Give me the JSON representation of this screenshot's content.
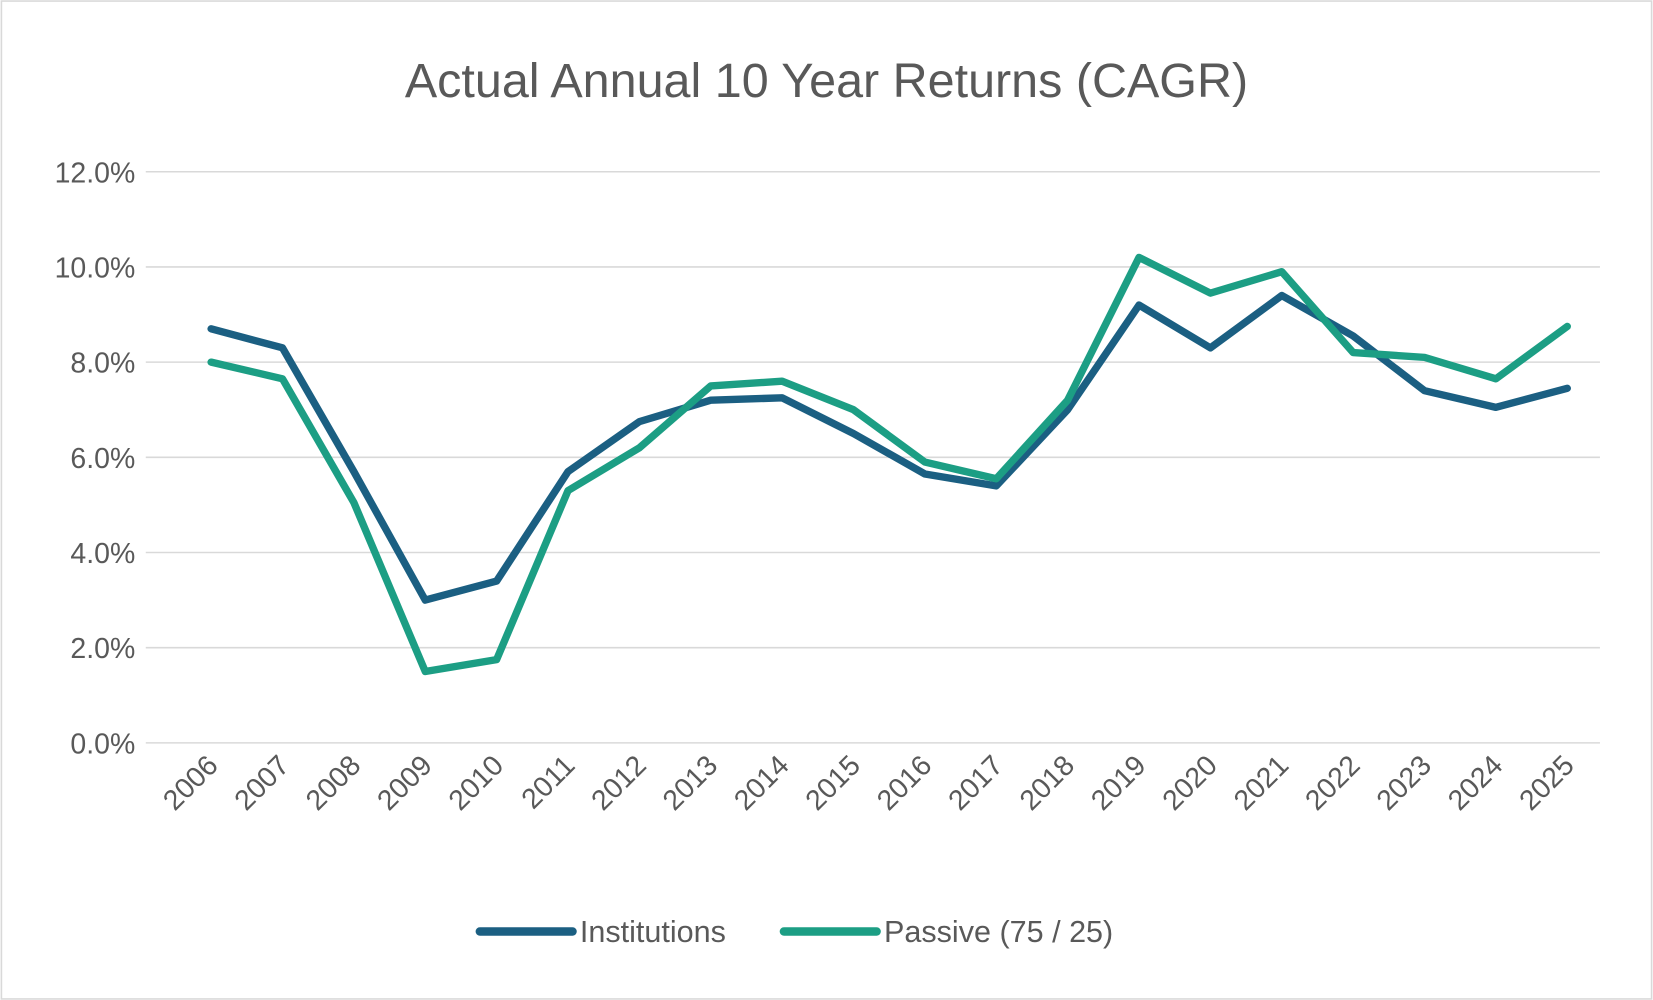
{
  "chart_data": {
    "type": "line",
    "title": "Actual Annual 10 Year Returns (CAGR)",
    "xlabel": "",
    "ylabel": "",
    "ylim": [
      0,
      12
    ],
    "y_ticks": [
      "0.0%",
      "2.0%",
      "4.0%",
      "6.0%",
      "8.0%",
      "10.0%",
      "12.0%"
    ],
    "grid": true,
    "legend_position": "bottom",
    "categories": [
      "2006",
      "2007",
      "2008",
      "2009",
      "2010",
      "2011",
      "2012",
      "2013",
      "2014",
      "2015",
      "2016",
      "2017",
      "2018",
      "2019",
      "2020",
      "2021",
      "2022",
      "2023",
      "2024",
      "2025"
    ],
    "series": [
      {
        "name": "Institutions",
        "color": "#1b5f82",
        "values": [
          8.7,
          8.3,
          5.7,
          3.0,
          3.4,
          5.7,
          6.75,
          7.2,
          7.25,
          6.5,
          5.65,
          5.4,
          7.0,
          9.2,
          8.3,
          9.4,
          8.55,
          7.4,
          7.05,
          7.45
        ]
      },
      {
        "name": "Passive (75 / 25)",
        "color": "#1c9e84",
        "values": [
          8.0,
          7.65,
          5.05,
          1.5,
          1.75,
          5.3,
          6.2,
          7.5,
          7.6,
          7.0,
          5.9,
          5.55,
          7.2,
          10.2,
          9.45,
          9.9,
          8.2,
          8.1,
          7.65,
          8.75
        ]
      }
    ]
  }
}
